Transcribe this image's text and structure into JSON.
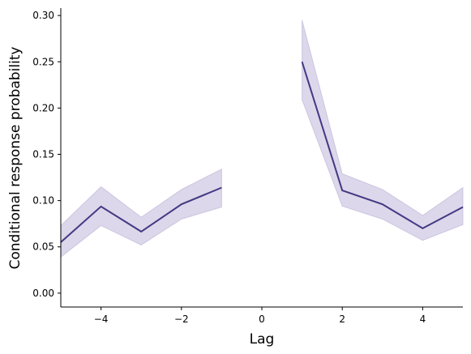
{
  "chart_data": {
    "type": "line",
    "x_label": "Lag",
    "y_label": "Conditional response probability",
    "x": [
      -5,
      -4,
      -3,
      -2,
      -1,
      0,
      1,
      2,
      3,
      4,
      5
    ],
    "values": [
      0.055,
      0.0936,
      0.0665,
      0.096,
      0.114,
      null,
      0.25,
      0.111,
      0.096,
      0.07,
      0.093
    ],
    "lower": [
      0.039,
      0.073,
      0.052,
      0.08,
      0.093,
      null,
      0.209,
      0.094,
      0.08,
      0.057,
      0.074
    ],
    "upper": [
      0.073,
      0.115,
      0.082,
      0.112,
      0.134,
      null,
      0.295,
      0.129,
      0.112,
      0.084,
      0.114
    ],
    "color": "#433983",
    "band_color": "#b9b0d6",
    "xlim": [
      -5,
      5
    ],
    "ylim": [
      -0.015,
      0.308
    ],
    "xticks": [
      {
        "value": -4,
        "label": "−4"
      },
      {
        "value": -2,
        "label": "−2"
      },
      0,
      2,
      4
    ],
    "yticks": [
      {
        "value": 0,
        "label": "0.00"
      },
      0.05,
      {
        "value": 0.1,
        "label": "0.10"
      },
      0.15,
      {
        "value": 0.2,
        "label": "0.20"
      },
      0.25,
      {
        "value": 0.3,
        "label": "0.30"
      }
    ],
    "grid": false
  }
}
